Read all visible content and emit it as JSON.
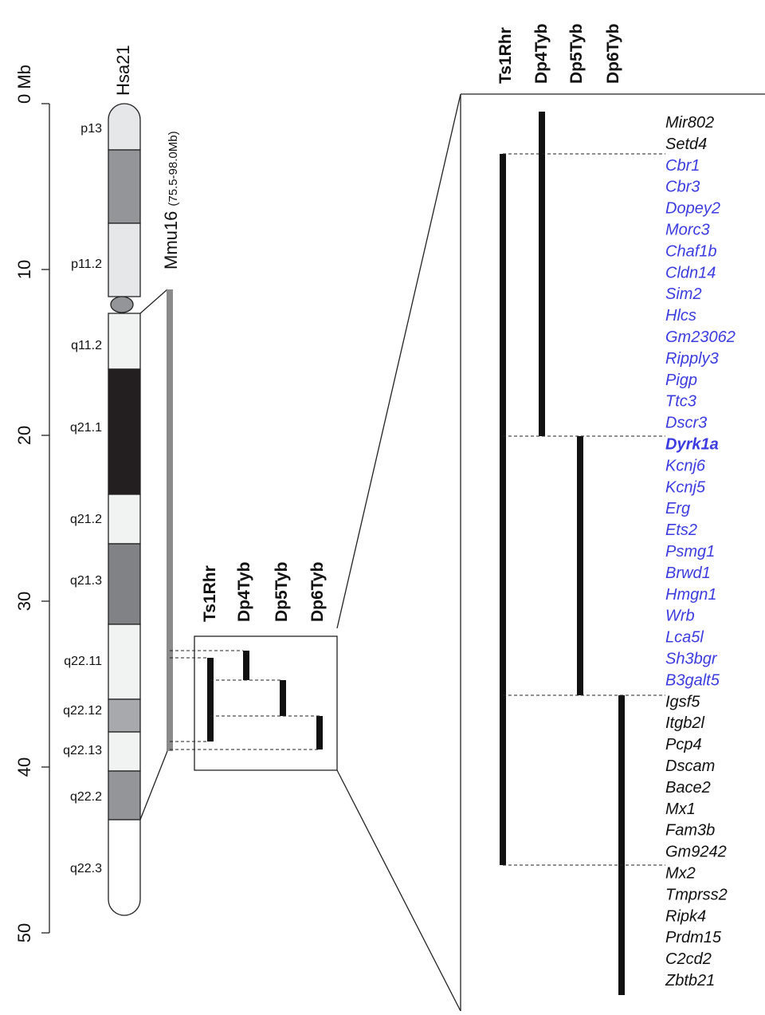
{
  "axis_labels": [
    "0 Mb",
    "10",
    "20",
    "30",
    "40",
    "50"
  ],
  "chromosome": {
    "name": "Hsa21",
    "bands": [
      "p13",
      "p11.2",
      "q11.2",
      "q21.1",
      "q21.2",
      "q21.3",
      "q22.11",
      "q22.12",
      "q22.13",
      "q22.2",
      "q22.3"
    ]
  },
  "mouse_region": {
    "name": "Mmu16",
    "range": "(75.5-98.0Mb)"
  },
  "strains": [
    "Ts1Rhr",
    "Dp4Tyb",
    "Dp5Tyb",
    "Dp6Tyb"
  ],
  "genes": [
    "Mir802",
    "Setd4",
    "Cbr1",
    "Cbr3",
    "Dopey2",
    "Morc3",
    "Chaf1b",
    "Cldn14",
    "Sim2",
    "Hlcs",
    "Gm23062",
    "Ripply3",
    "Pigp",
    "Ttc3",
    "Dscr3",
    "Dyrk1a",
    "Kcnj6",
    "Kcnj5",
    "Erg",
    "Ets2",
    "Psmg1",
    "Brwd1",
    "Hmgn1",
    "Wrb",
    "Lca5l",
    "Sh3bgr",
    "B3galt5",
    "Igsf5",
    "Itgb2l",
    "Pcp4",
    "Dscam",
    "Bace2",
    "Mx1",
    "Fam3b",
    "Gm9242",
    "Mx2",
    "Tmprss2",
    "Ripk4",
    "Prdm15",
    "C2cd2",
    "Zbtb21"
  ]
}
